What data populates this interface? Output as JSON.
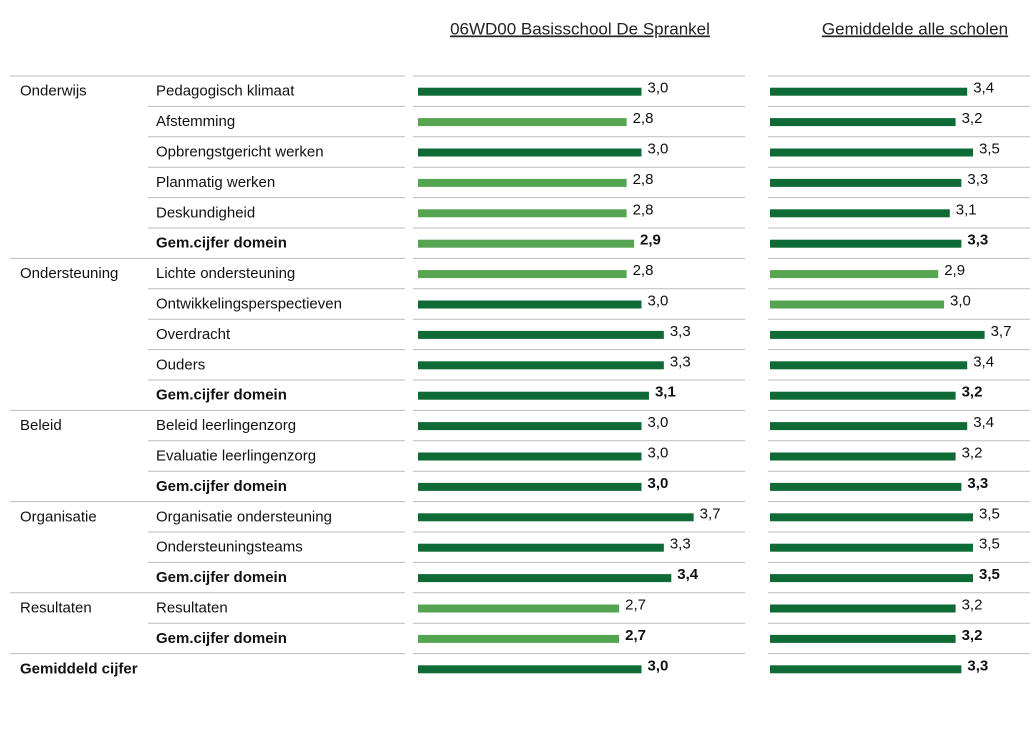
{
  "headers": [
    "06WD00 Basisschool De Sprankel",
    "Gemiddelde alle scholen"
  ],
  "xlim": [
    0,
    4
  ],
  "colors": {
    "dark": "#0e6b35",
    "light": "#55a452"
  },
  "rows": [
    {
      "group": "Onderwijs",
      "label": "Pedagogisch klimaat",
      "values": [
        3.0,
        3.4
      ],
      "value_labels": [
        "3,0",
        "3,4"
      ],
      "shades": [
        "dark",
        "dark"
      ]
    },
    {
      "label": "Afstemming",
      "values": [
        2.8,
        3.2
      ],
      "value_labels": [
        "2,8",
        "3,2"
      ],
      "shades": [
        "light",
        "dark"
      ]
    },
    {
      "label": "Opbrengstgericht werken",
      "values": [
        3.0,
        3.5
      ],
      "value_labels": [
        "3,0",
        "3,5"
      ],
      "shades": [
        "dark",
        "dark"
      ]
    },
    {
      "label": "Planmatig werken",
      "values": [
        2.8,
        3.3
      ],
      "value_labels": [
        "2,8",
        "3,3"
      ],
      "shades": [
        "light",
        "dark"
      ]
    },
    {
      "label": "Deskundigheid",
      "values": [
        2.8,
        3.1
      ],
      "value_labels": [
        "2,8",
        "3,1"
      ],
      "shades": [
        "light",
        "dark"
      ]
    },
    {
      "label": "Gem.cijfer domein",
      "bold": true,
      "values": [
        2.9,
        3.3
      ],
      "value_labels": [
        "2,9",
        "3,3"
      ],
      "shades": [
        "light",
        "dark"
      ]
    },
    {
      "group": "Ondersteuning",
      "label": "Lichte ondersteuning",
      "values": [
        2.8,
        2.9
      ],
      "value_labels": [
        "2,8",
        "2,9"
      ],
      "shades": [
        "light",
        "light"
      ]
    },
    {
      "label": "Ontwikkelingsperspectieven",
      "values": [
        3.0,
        3.0
      ],
      "value_labels": [
        "3,0",
        "3,0"
      ],
      "shades": [
        "dark",
        "light"
      ]
    },
    {
      "label": "Overdracht",
      "values": [
        3.3,
        3.7
      ],
      "value_labels": [
        "3,3",
        "3,7"
      ],
      "shades": [
        "dark",
        "dark"
      ]
    },
    {
      "label": "Ouders",
      "values": [
        3.3,
        3.4
      ],
      "value_labels": [
        "3,3",
        "3,4"
      ],
      "shades": [
        "dark",
        "dark"
      ]
    },
    {
      "label": "Gem.cijfer domein",
      "bold": true,
      "values": [
        3.1,
        3.2
      ],
      "value_labels": [
        "3,1",
        "3,2"
      ],
      "shades": [
        "dark",
        "dark"
      ]
    },
    {
      "group": "Beleid",
      "label": "Beleid leerlingenzorg",
      "values": [
        3.0,
        3.4
      ],
      "value_labels": [
        "3,0",
        "3,4"
      ],
      "shades": [
        "dark",
        "dark"
      ]
    },
    {
      "label": "Evaluatie leerlingenzorg",
      "values": [
        3.0,
        3.2
      ],
      "value_labels": [
        "3,0",
        "3,2"
      ],
      "shades": [
        "dark",
        "dark"
      ]
    },
    {
      "label": "Gem.cijfer domein",
      "bold": true,
      "values": [
        3.0,
        3.3
      ],
      "value_labels": [
        "3,0",
        "3,3"
      ],
      "shades": [
        "dark",
        "dark"
      ]
    },
    {
      "group": "Organisatie",
      "label": "Organisatie ondersteuning",
      "values": [
        3.7,
        3.5
      ],
      "value_labels": [
        "3,7",
        "3,5"
      ],
      "shades": [
        "dark",
        "dark"
      ]
    },
    {
      "label": "Ondersteuningsteams",
      "values": [
        3.3,
        3.5
      ],
      "value_labels": [
        "3,3",
        "3,5"
      ],
      "shades": [
        "dark",
        "dark"
      ]
    },
    {
      "label": "Gem.cijfer domein",
      "bold": true,
      "values": [
        3.4,
        3.5
      ],
      "value_labels": [
        "3,4",
        "3,5"
      ],
      "shades": [
        "dark",
        "dark"
      ]
    },
    {
      "group": "Resultaten",
      "label": "Resultaten",
      "values": [
        2.7,
        3.2
      ],
      "value_labels": [
        "2,7",
        "3,2"
      ],
      "shades": [
        "light",
        "dark"
      ]
    },
    {
      "label": "Gem.cijfer domein",
      "bold": true,
      "values": [
        2.7,
        3.2
      ],
      "value_labels": [
        "2,7",
        "3,2"
      ],
      "shades": [
        "light",
        "dark"
      ]
    },
    {
      "group": "Gemiddeld cijfer",
      "bold": true,
      "values": [
        3.0,
        3.3
      ],
      "value_labels": [
        "3,0",
        "3,3"
      ],
      "shades": [
        "dark",
        "dark"
      ]
    }
  ]
}
